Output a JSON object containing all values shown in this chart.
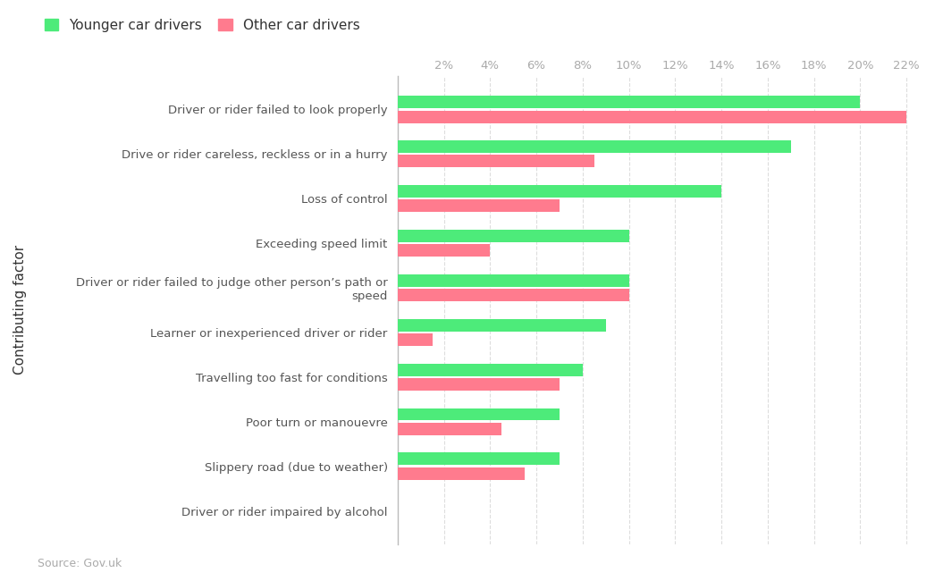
{
  "categories": [
    "Driver or rider failed to look properly",
    "Drive or rider careless, reckless or in a hurry",
    "Loss of control",
    "Exceeding speed limit",
    "Driver or rider failed to judge other person’s path or\nspeed",
    "Learner or inexperienced driver or rider",
    "Travelling too fast for conditions",
    "Poor turn or manouevre",
    "Slippery road (due to weather)",
    "Driver or rider impaired by alcohol"
  ],
  "younger_drivers": [
    20,
    17,
    14,
    10,
    10,
    9,
    8,
    7,
    7,
    0
  ],
  "other_drivers": [
    22,
    8.5,
    7,
    4,
    10,
    1.5,
    7,
    4.5,
    5.5,
    0
  ],
  "green_color": "#4deb7a",
  "pink_color": "#ff7b8e",
  "background_color": "#ffffff",
  "ylabel": "Contributing factor",
  "source_text": "Source: Gov.uk",
  "legend_younger": "Younger car drivers",
  "legend_other": "Other car drivers",
  "xlim": [
    0,
    23
  ],
  "xticks": [
    2,
    4,
    6,
    8,
    10,
    12,
    14,
    16,
    18,
    20,
    22
  ],
  "xtick_labels": [
    "2%",
    "4%",
    "6%",
    "8%",
    "10%",
    "12%",
    "14%",
    "16%",
    "18%",
    "20%",
    "22%"
  ]
}
